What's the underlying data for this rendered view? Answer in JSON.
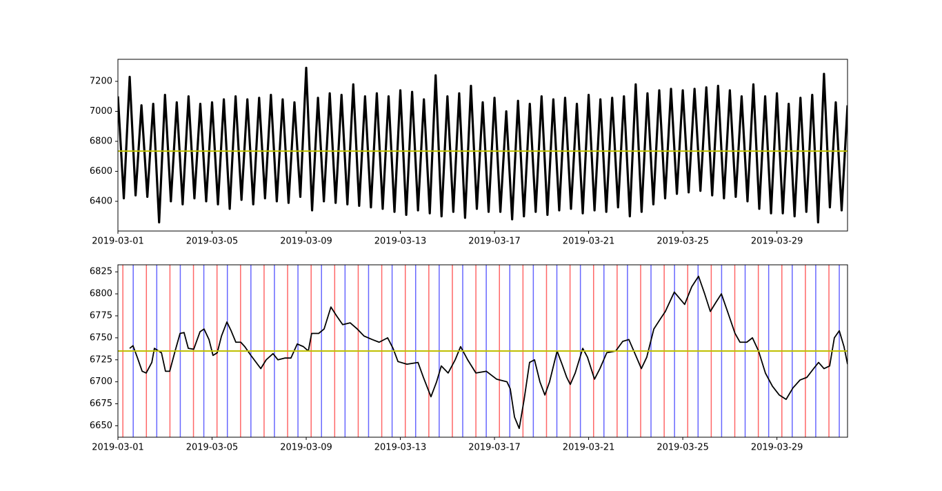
{
  "chart_data": [
    {
      "type": "line",
      "color": "#000000",
      "hline": 6735,
      "hline_color": "#bfbf00",
      "xlim": [
        0,
        31
      ],
      "ylim": [
        6202,
        7347
      ],
      "xticks": [
        {
          "value": 0,
          "label": "2019-03-01"
        },
        {
          "value": 4,
          "label": "2019-03-05"
        },
        {
          "value": 8,
          "label": "2019-03-09"
        },
        {
          "value": 12,
          "label": "2019-03-13"
        },
        {
          "value": 16,
          "label": "2019-03-17"
        },
        {
          "value": 20,
          "label": "2019-03-21"
        },
        {
          "value": 24,
          "label": "2019-03-25"
        },
        {
          "value": 28,
          "label": "2019-03-29"
        }
      ],
      "yticks": [
        6400,
        6600,
        6800,
        7000,
        7200
      ],
      "x": [
        0,
        0.25,
        0.5,
        0.75,
        1,
        1.25,
        1.5,
        1.75,
        2,
        2.25,
        2.5,
        2.75,
        3,
        3.25,
        3.5,
        3.75,
        4,
        4.25,
        4.5,
        4.75,
        5,
        5.25,
        5.5,
        5.75,
        6,
        6.25,
        6.5,
        6.75,
        7,
        7.25,
        7.5,
        7.75,
        8,
        8.25,
        8.5,
        8.75,
        9,
        9.25,
        9.5,
        9.75,
        10,
        10.25,
        10.5,
        10.75,
        11,
        11.25,
        11.5,
        11.75,
        12,
        12.25,
        12.5,
        12.75,
        13,
        13.25,
        13.5,
        13.75,
        14,
        14.25,
        14.5,
        14.75,
        15,
        15.25,
        15.5,
        15.75,
        16,
        16.25,
        16.5,
        16.75,
        17,
        17.25,
        17.5,
        17.75,
        18,
        18.25,
        18.5,
        18.75,
        19,
        19.25,
        19.5,
        19.75,
        20,
        20.25,
        20.5,
        20.75,
        21,
        21.25,
        21.5,
        21.75,
        22,
        22.25,
        22.5,
        22.75,
        23,
        23.25,
        23.5,
        23.75,
        24,
        24.25,
        24.5,
        24.75,
        25,
        25.25,
        25.5,
        25.75,
        26,
        26.25,
        26.5,
        26.75,
        27,
        27.25,
        27.5,
        27.75,
        28,
        28.25,
        28.5,
        28.75,
        29,
        29.25,
        29.5,
        29.75,
        30,
        30.25,
        30.5,
        30.75,
        31
      ],
      "values": [
        7100,
        6420,
        7230,
        6440,
        7040,
        6430,
        7050,
        6260,
        7110,
        6400,
        7060,
        6380,
        7100,
        6420,
        7050,
        6400,
        7060,
        6380,
        7080,
        6350,
        7100,
        6410,
        7080,
        6380,
        7090,
        6420,
        7110,
        6400,
        7080,
        6390,
        7060,
        6430,
        7290,
        6340,
        7090,
        6400,
        7120,
        6390,
        7110,
        6380,
        7180,
        6370,
        7100,
        6360,
        7120,
        6350,
        7100,
        6330,
        7140,
        6310,
        7130,
        6340,
        7080,
        6320,
        7240,
        6300,
        7100,
        6330,
        7120,
        6290,
        7170,
        6350,
        7060,
        6330,
        7090,
        6330,
        7000,
        6280,
        7070,
        6300,
        7050,
        6330,
        7100,
        6310,
        7080,
        6340,
        7090,
        6350,
        7050,
        6320,
        7110,
        6340,
        7080,
        6330,
        7090,
        6360,
        7100,
        6300,
        7180,
        6330,
        7120,
        6380,
        7140,
        6420,
        7150,
        6450,
        7140,
        6460,
        7150,
        6470,
        7160,
        6440,
        7170,
        6420,
        7140,
        6430,
        7100,
        6400,
        7180,
        6350,
        7100,
        6320,
        7120,
        6320,
        7050,
        6300,
        7090,
        6330,
        7110,
        6260,
        7250,
        6360,
        7060,
        6340,
        7040
      ]
    },
    {
      "type": "line",
      "color": "#000000",
      "hline": 6735,
      "hline_color": "#bfbf00",
      "xlim": [
        0,
        31
      ],
      "ylim": [
        6637,
        6833
      ],
      "xticks": [
        {
          "value": 0,
          "label": "2019-03-01"
        },
        {
          "value": 4,
          "label": "2019-03-05"
        },
        {
          "value": 8,
          "label": "2019-03-09"
        },
        {
          "value": 12,
          "label": "2019-03-13"
        },
        {
          "value": 16,
          "label": "2019-03-17"
        },
        {
          "value": 20,
          "label": "2019-03-21"
        },
        {
          "value": 24,
          "label": "2019-03-25"
        },
        {
          "value": 28,
          "label": "2019-03-29"
        }
      ],
      "yticks": [
        6650,
        6675,
        6700,
        6725,
        6750,
        6775,
        6800,
        6825
      ],
      "red_lines": [
        0.21,
        1.21,
        2.21,
        3.21,
        4.21,
        5.21,
        6.21,
        7.21,
        8.21,
        9.21,
        10.21,
        11.21,
        12.21,
        13.21,
        14.21,
        15.21,
        16.21,
        17.21,
        18.21,
        19.21,
        20.21,
        21.21,
        22.21,
        23.21,
        24.21,
        25.21,
        26.21,
        27.21,
        28.21,
        29.21,
        30.21
      ],
      "blue_lines": [
        0.65,
        1.65,
        2.65,
        3.65,
        4.65,
        5.65,
        6.65,
        7.65,
        8.65,
        9.65,
        10.65,
        11.65,
        12.65,
        13.65,
        14.65,
        15.65,
        16.65,
        17.65,
        18.65,
        19.65,
        20.65,
        21.65,
        22.65,
        23.65,
        24.65,
        25.65,
        26.65,
        27.65,
        28.65,
        29.65,
        30.65
      ],
      "red_color": "#ff0000",
      "blue_color": "#0000ff",
      "x": [
        0.5,
        0.64,
        0.82,
        1.03,
        1.2,
        1.44,
        1.55,
        1.85,
        2.02,
        2.2,
        2.43,
        2.64,
        2.81,
        2.99,
        3.22,
        3.49,
        3.66,
        3.87,
        4.04,
        4.22,
        4.4,
        4.63,
        4.81,
        5.01,
        5.22,
        5.39,
        5.65,
        6.07,
        6.3,
        6.59,
        6.8,
        7.09,
        7.35,
        7.62,
        7.88,
        8.09,
        8.23,
        8.53,
        8.76,
        9.05,
        9.29,
        9.55,
        9.87,
        10.17,
        10.46,
        10.81,
        11.1,
        11.46,
        11.69,
        11.9,
        12.28,
        12.75,
        12.98,
        13.3,
        13.54,
        13.74,
        14.03,
        14.33,
        14.56,
        14.86,
        15.21,
        15.65,
        16.09,
        16.53,
        16.67,
        16.85,
        17.05,
        17.26,
        17.49,
        17.7,
        17.93,
        18.14,
        18.34,
        18.66,
        18.87,
        19.07,
        19.22,
        19.43,
        19.75,
        19.95,
        20.25,
        20.48,
        20.77,
        21.15,
        21.45,
        21.71,
        22,
        22.24,
        22.47,
        22.77,
        23.06,
        23.26,
        23.64,
        24.08,
        24.38,
        24.67,
        24.93,
        25.17,
        25.4,
        25.64,
        25.9,
        26.22,
        26.43,
        26.72,
        26.96,
        27.22,
        27.51,
        27.81,
        28.1,
        28.39,
        28.68,
        28.98,
        29.27,
        29.56,
        29.77,
        30,
        30.24,
        30.44,
        30.65,
        30.85,
        31
      ],
      "values": [
        6738,
        6741,
        6728,
        6712,
        6710,
        6722,
        6738,
        6733,
        6712,
        6712,
        6735,
        6755,
        6756,
        6738,
        6737,
        6757,
        6760,
        6748,
        6730,
        6733,
        6752,
        6768,
        6758,
        6745,
        6745,
        6740,
        6730,
        6715,
        6725,
        6732,
        6725,
        6727,
        6727,
        6743,
        6740,
        6735,
        6755,
        6755,
        6760,
        6785,
        6775,
        6765,
        6767,
        6760,
        6752,
        6748,
        6745,
        6750,
        6738,
        6723,
        6720,
        6722,
        6705,
        6683,
        6700,
        6718,
        6710,
        6725,
        6740,
        6725,
        6710,
        6712,
        6703,
        6700,
        6692,
        6660,
        6647,
        6680,
        6722,
        6725,
        6700,
        6685,
        6700,
        6735,
        6720,
        6705,
        6697,
        6710,
        6738,
        6728,
        6703,
        6715,
        6733,
        6735,
        6746,
        6748,
        6730,
        6715,
        6728,
        6760,
        6772,
        6780,
        6802,
        6788,
        6808,
        6820,
        6800,
        6780,
        6790,
        6800,
        6780,
        6755,
        6745,
        6745,
        6750,
        6735,
        6710,
        6695,
        6685,
        6680,
        6693,
        6702,
        6705,
        6715,
        6722,
        6715,
        6718,
        6750,
        6758,
        6740,
        6720
      ]
    }
  ]
}
